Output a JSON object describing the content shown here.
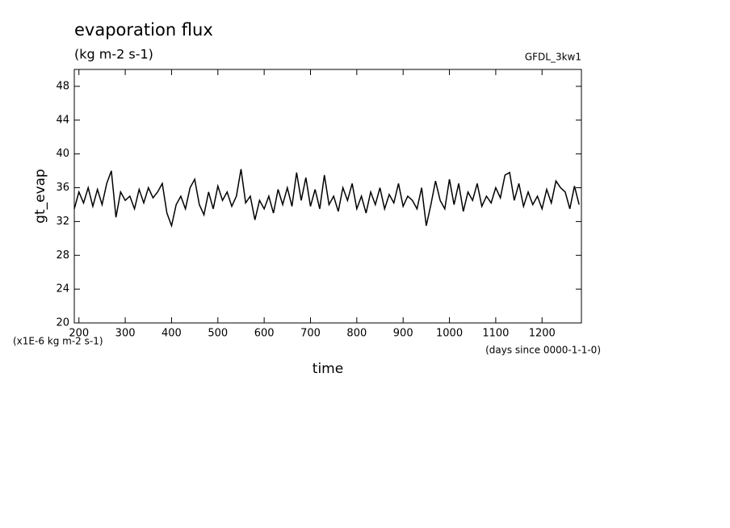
{
  "chart_data": {
    "type": "line",
    "title": "evaporation flux",
    "subtitle": "(kg m-2 s-1)",
    "dataset_label": "GFDL_3kw1",
    "y_label": "gt_evap",
    "x_label": "time",
    "y_units": "(x1E-6 kg m-2 s-1)",
    "x_units": "(days since 0000-1-1-0)",
    "color": "#000000",
    "x": [
      190,
      200,
      210,
      220,
      230,
      240,
      250,
      260,
      270,
      280,
      290,
      300,
      310,
      320,
      330,
      340,
      350,
      360,
      370,
      380,
      390,
      400,
      410,
      420,
      430,
      440,
      450,
      460,
      470,
      480,
      490,
      500,
      510,
      520,
      530,
      540,
      550,
      560,
      570,
      580,
      590,
      600,
      610,
      620,
      630,
      640,
      650,
      660,
      670,
      680,
      690,
      700,
      710,
      720,
      730,
      740,
      750,
      760,
      770,
      780,
      790,
      800,
      810,
      820,
      830,
      840,
      850,
      860,
      870,
      880,
      890,
      900,
      910,
      920,
      930,
      940,
      950,
      960,
      970,
      980,
      990,
      1000,
      1010,
      1020,
      1030,
      1040,
      1050,
      1060,
      1070,
      1080,
      1090,
      1100,
      1110,
      1120,
      1130,
      1140,
      1150,
      1160,
      1170,
      1180,
      1190,
      1200,
      1210,
      1220,
      1230,
      1240,
      1250,
      1260,
      1270,
      1280
    ],
    "values": [
      33.5,
      35.5,
      34.2,
      36.0,
      33.8,
      35.8,
      34.0,
      36.5,
      38.0,
      32.5,
      35.5,
      34.5,
      35.0,
      33.5,
      35.8,
      34.2,
      36.0,
      34.8,
      35.5,
      36.5,
      33.0,
      31.5,
      34.0,
      35.0,
      33.5,
      36.0,
      37.0,
      34.0,
      32.8,
      35.5,
      33.5,
      36.2,
      34.5,
      35.5,
      33.8,
      35.0,
      38.2,
      34.2,
      35.0,
      32.2,
      34.5,
      33.5,
      35.0,
      33.0,
      35.8,
      34.0,
      36.0,
      33.8,
      37.8,
      34.5,
      37.2,
      33.8,
      35.8,
      33.5,
      37.5,
      34.0,
      35.0,
      33.2,
      36.0,
      34.5,
      36.5,
      33.5,
      35.0,
      33.0,
      35.5,
      34.0,
      36.0,
      33.5,
      35.2,
      34.2,
      36.5,
      33.8,
      35.0,
      34.5,
      33.5,
      36.0,
      31.5,
      34.0,
      36.8,
      34.5,
      33.5,
      37.0,
      34.0,
      36.5,
      33.2,
      35.5,
      34.5,
      36.5,
      33.8,
      35.0,
      34.2,
      36.0,
      34.8,
      37.5,
      37.8,
      34.5,
      36.5,
      33.8,
      35.5,
      34.0,
      35.0,
      33.5,
      35.8,
      34.2,
      36.8,
      36.0,
      35.5,
      33.5,
      36.2,
      34.0
    ],
    "xlim": [
      190,
      1285
    ],
    "ylim": [
      20,
      50
    ],
    "xticks": [
      200,
      300,
      400,
      500,
      600,
      700,
      800,
      900,
      1000,
      1100,
      1200
    ],
    "yticks": [
      20,
      24,
      28,
      32,
      36,
      40,
      44,
      48
    ]
  }
}
